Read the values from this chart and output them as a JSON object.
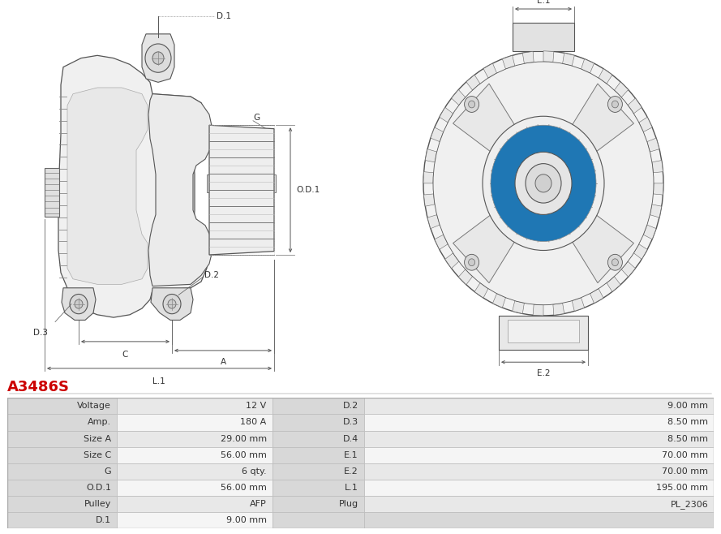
{
  "title": "A3486S",
  "title_color": "#cc0000",
  "bg_color": "#ffffff",
  "table_rows": [
    [
      "Voltage",
      "12 V",
      "D.2",
      "9.00 mm"
    ],
    [
      "Amp.",
      "180 A",
      "D.3",
      "8.50 mm"
    ],
    [
      "Size A",
      "29.00 mm",
      "D.4",
      "8.50 mm"
    ],
    [
      "Size C",
      "56.00 mm",
      "E.1",
      "70.00 mm"
    ],
    [
      "G",
      "6 qty.",
      "E.2",
      "70.00 mm"
    ],
    [
      "O.D.1",
      "56.00 mm",
      "L.1",
      "195.00 mm"
    ],
    [
      "Pulley",
      "AFP",
      "Plug",
      "PL_2306"
    ],
    [
      "D.1",
      "9.00 mm",
      "",
      ""
    ]
  ],
  "row_bg_odd": "#e8e8e8",
  "row_bg_even": "#f5f5f5",
  "col_label_bg": "#d8d8d8"
}
